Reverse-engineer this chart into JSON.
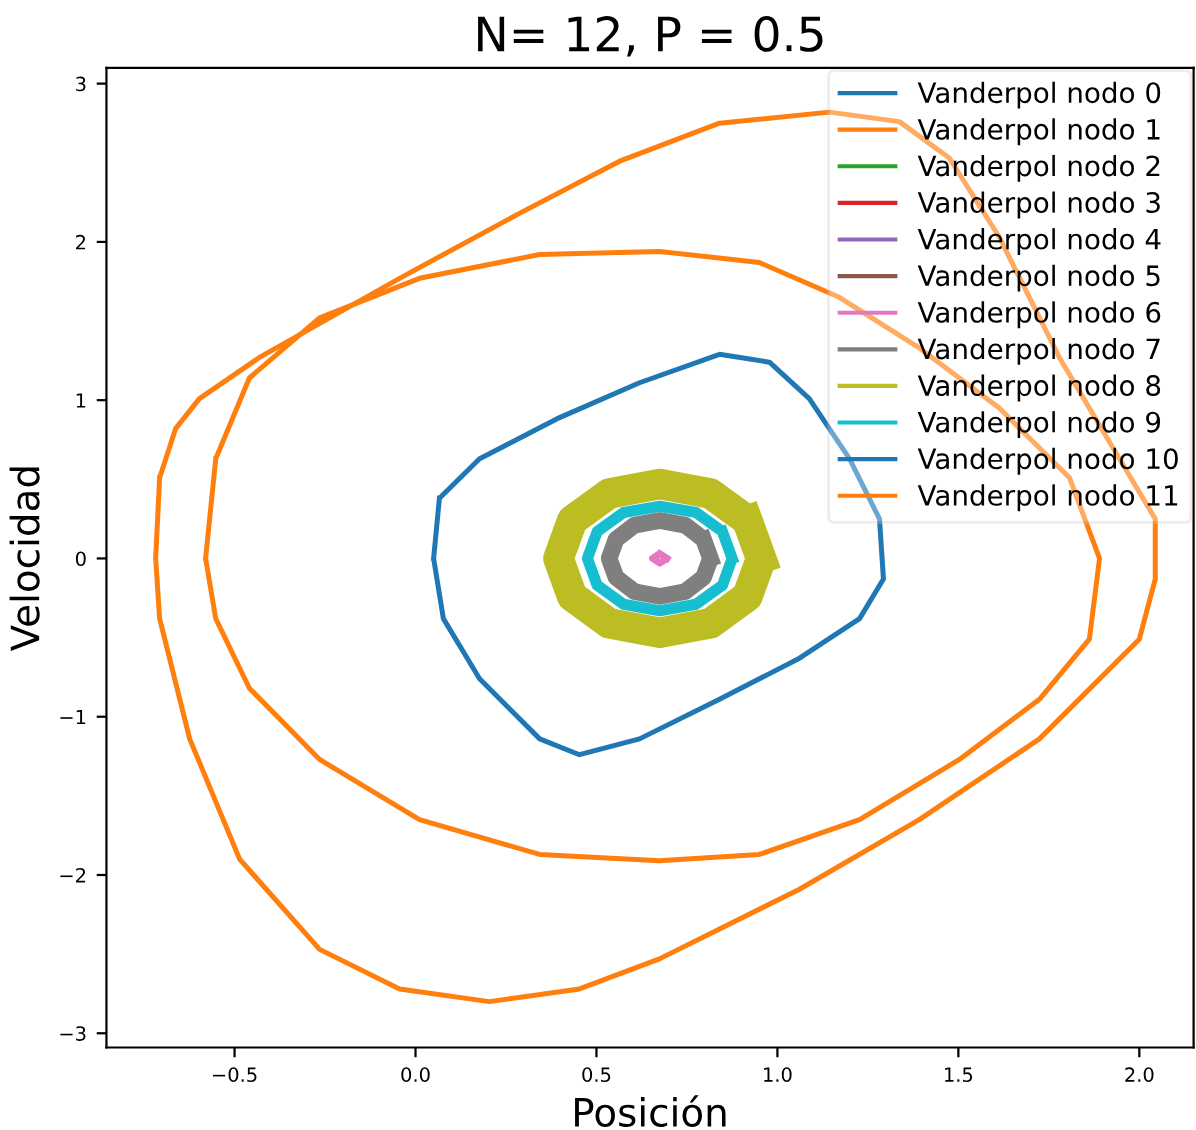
{
  "chart_data": {
    "type": "line",
    "title": "N= 12, P = 0.5",
    "xlabel": "Posición",
    "ylabel": "Velocidad",
    "xlim": [
      -0.854,
      2.15
    ],
    "ylim": [
      -3.09,
      3.1
    ],
    "xticks": [
      {
        "value": -0.5,
        "label": "−0.5"
      },
      {
        "value": 0.0,
        "label": "0.0"
      },
      {
        "value": 0.5,
        "label": "0.5"
      },
      {
        "value": 1.0,
        "label": "1.0"
      },
      {
        "value": 1.5,
        "label": "1.5"
      },
      {
        "value": 2.0,
        "label": "2.0"
      }
    ],
    "yticks": [
      {
        "value": -3,
        "label": "−3"
      },
      {
        "value": -2,
        "label": "−2"
      },
      {
        "value": -1,
        "label": "−1"
      },
      0,
      1,
      2,
      3
    ],
    "grid": false,
    "legend": "top right",
    "marker": "none",
    "line_style": "solid",
    "series": [
      {
        "name": "Vanderpol nodo 0",
        "color": "#1f77b4",
        "x": [
          0.05,
          0.066,
          0.177,
          0.398,
          0.619,
          0.84,
          0.978,
          1.088,
          1.199,
          1.282,
          1.293,
          1.227,
          1.061,
          0.84,
          0.619,
          0.453,
          0.343,
          0.177,
          0.077,
          0.05,
          0.066
        ],
        "values": [
          0,
          0.38,
          0.63,
          0.89,
          1.11,
          1.29,
          1.24,
          1.01,
          0.63,
          0.25,
          -0.13,
          -0.38,
          -0.63,
          -0.89,
          -1.14,
          -1.24,
          -1.14,
          -0.76,
          -0.38,
          0,
          0.38
        ]
      },
      {
        "name": "Vanderpol nodo 1",
        "color": "#ff7f0e",
        "x": [
          -0.718,
          -0.707,
          -0.663,
          -0.597,
          -0.431,
          -0.044,
          0.287,
          0.564,
          0.84,
          1.144,
          1.337,
          1.475,
          1.613,
          1.779,
          1.945,
          2.044,
          2.044,
          2.0,
          1.724,
          1.392,
          1.061,
          0.674,
          0.453,
          0.204,
          -0.044,
          -0.265,
          -0.486,
          -0.624,
          -0.707,
          -0.718,
          -0.707
        ],
        "values": [
          0,
          0.51,
          0.82,
          1.01,
          1.27,
          1.77,
          2.18,
          2.51,
          2.75,
          2.82,
          2.76,
          2.53,
          2.03,
          1.27,
          0.63,
          0.25,
          -0.13,
          -0.51,
          -1.14,
          -1.65,
          -2.09,
          -2.53,
          -2.72,
          -2.8,
          -2.72,
          -2.47,
          -1.9,
          -1.14,
          -0.38,
          0,
          0.51
        ]
      },
      {
        "name": "Vanderpol nodo 2",
        "color": "#2ca02c"
      },
      {
        "name": "Vanderpol nodo 3",
        "color": "#d62728"
      },
      {
        "name": "Vanderpol nodo 4",
        "color": "#9467bd"
      },
      {
        "name": "Vanderpol nodo 5",
        "color": "#8c564b"
      },
      {
        "name": "Vanderpol nodo 6",
        "color": "#e377c2",
        "x": [
          0.695,
          0.675,
          0.655,
          0.675,
          0.695,
          0.675
        ],
        "values": [
          0,
          0.03,
          0,
          -0.03,
          0,
          0.03
        ]
      },
      {
        "name": "Vanderpol nodo 7",
        "color": "#7f7f7f",
        "x": [
          0.815,
          0.796,
          0.745,
          0.675,
          0.605,
          0.554,
          0.535,
          0.554,
          0.605,
          0.675,
          0.745,
          0.796,
          0.815,
          0.796
        ],
        "values": [
          0,
          0.12,
          0.21,
          0.24,
          0.21,
          0.12,
          0,
          -0.12,
          -0.21,
          -0.24,
          -0.21,
          -0.12,
          0,
          0.12
        ]
      },
      {
        "name": "Vanderpol nodo 8",
        "color": "#bcbd22",
        "x": [
          0.955,
          0.917,
          0.815,
          0.675,
          0.535,
          0.433,
          0.395,
          0.433,
          0.535,
          0.675,
          0.815,
          0.917,
          0.955,
          0.917
        ],
        "values": [
          0,
          0.24,
          0.41,
          0.47,
          0.41,
          0.24,
          0,
          -0.24,
          -0.41,
          -0.47,
          -0.41,
          -0.24,
          0,
          0.24
        ]
      },
      {
        "name": "Vanderpol nodo 9",
        "color": "#17becf",
        "x": [
          0.875,
          0.848,
          0.775,
          0.675,
          0.575,
          0.502,
          0.475,
          0.502,
          0.575,
          0.675,
          0.775,
          0.848,
          0.875,
          0.848
        ],
        "values": [
          0,
          0.17,
          0.29,
          0.33,
          0.29,
          0.17,
          0,
          -0.17,
          -0.29,
          -0.33,
          -0.29,
          -0.17,
          0,
          0.17
        ]
      },
      {
        "name": "Vanderpol nodo 10",
        "color": "#1f77b4"
      },
      {
        "name": "Vanderpol nodo 11",
        "color": "#ff7f0e",
        "x": [
          -0.58,
          -0.552,
          -0.459,
          -0.265,
          0.011,
          0.343,
          0.674,
          0.95,
          1.171,
          1.392,
          1.613,
          1.807,
          1.89,
          1.862,
          1.724,
          1.503,
          1.227,
          0.95,
          0.674,
          0.343,
          0.011,
          -0.265,
          -0.459,
          -0.552,
          -0.58,
          -0.552
        ],
        "values": [
          0,
          0.63,
          1.14,
          1.52,
          1.77,
          1.92,
          1.94,
          1.87,
          1.65,
          1.33,
          0.95,
          0.51,
          0,
          -0.51,
          -0.89,
          -1.27,
          -1.65,
          -1.87,
          -1.91,
          -1.87,
          -1.65,
          -1.27,
          -0.82,
          -0.38,
          0,
          0.63
        ]
      }
    ]
  }
}
